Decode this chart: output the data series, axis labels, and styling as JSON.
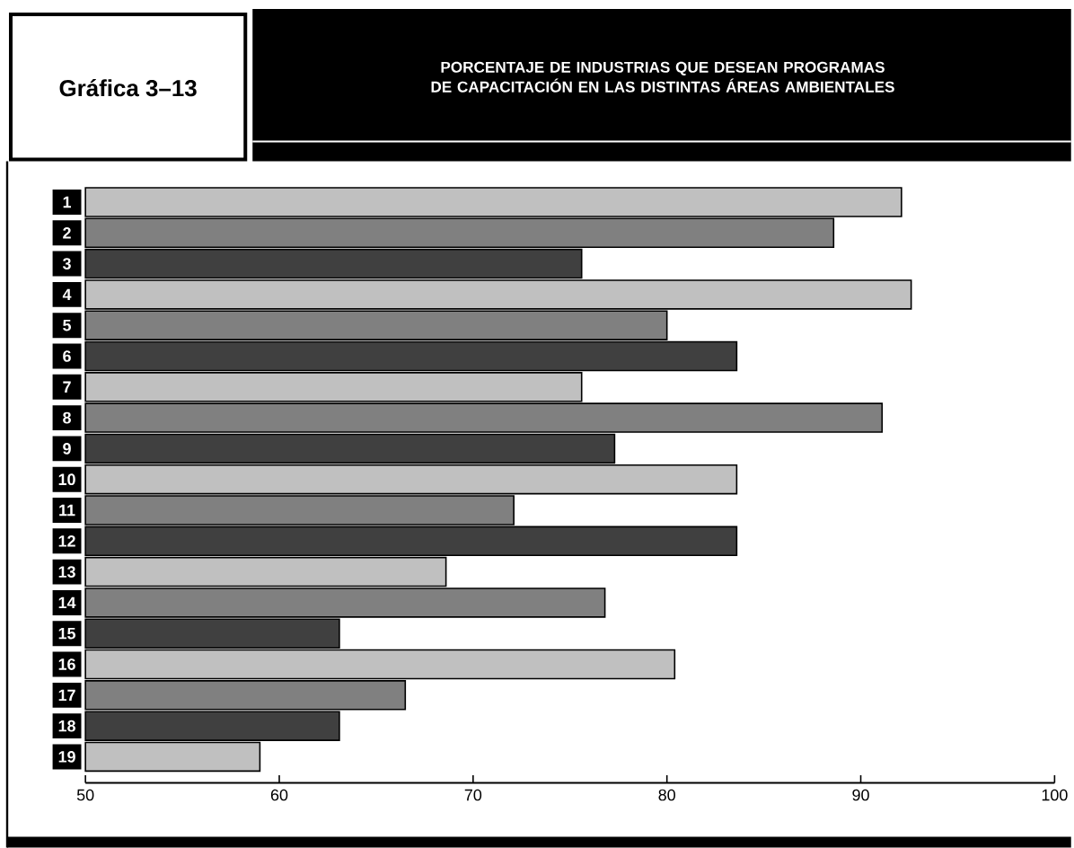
{
  "chart_data": {
    "type": "bar",
    "orientation": "horizontal",
    "subtitle": "Gráfica 3–13",
    "title": "PORCENTAJE DE INDUSTRIAS QUE DESEAN PROGRAMAS DE CAPACITACIÓN EN LAS DISTINTAS ÁREAS AMBIENTALES",
    "categories": [
      "1",
      "2",
      "3",
      "4",
      "5",
      "6",
      "7",
      "8",
      "9",
      "10",
      "11",
      "12",
      "13",
      "14",
      "15",
      "16",
      "17",
      "18",
      "19"
    ],
    "values": [
      92.1,
      88.6,
      75.6,
      92.6,
      80.0,
      83.6,
      75.6,
      91.1,
      77.3,
      83.6,
      72.1,
      83.6,
      68.6,
      76.8,
      63.1,
      80.4,
      66.5,
      63.1,
      59.0
    ],
    "colors": [
      "#c0c0c0",
      "#808080",
      "#404040",
      "#c0c0c0",
      "#808080",
      "#404040",
      "#c0c0c0",
      "#808080",
      "#404040",
      "#c0c0c0",
      "#808080",
      "#404040",
      "#c0c0c0",
      "#808080",
      "#404040",
      "#c0c0c0",
      "#808080",
      "#404040",
      "#c0c0c0"
    ],
    "xlim": [
      50,
      100
    ],
    "xticks": [
      50,
      60,
      70,
      80,
      90,
      100
    ],
    "grid": false
  }
}
